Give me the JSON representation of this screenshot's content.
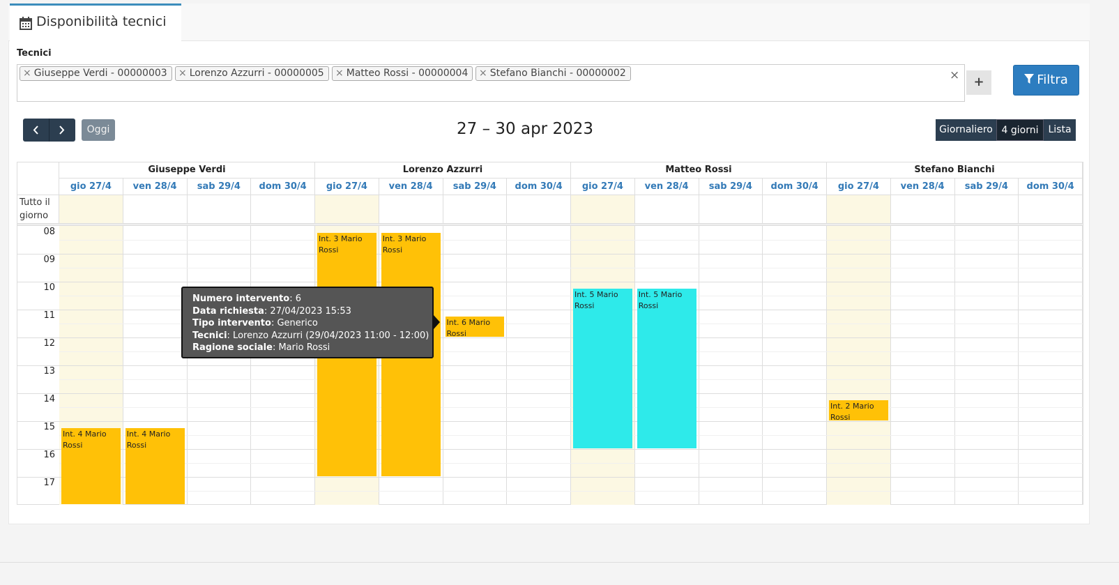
{
  "tab": {
    "title": "Disponibilità tecnici"
  },
  "filter": {
    "label": "Tecnici",
    "remove_icon": "×",
    "tags": [
      "Giuseppe Verdi - 00000003",
      "Lorenzo Azzurri - 00000005",
      "Matteo Rossi - 00000004",
      "Stefano Bianchi - 00000002"
    ],
    "clear": "×",
    "add": "+",
    "button": "Filtra"
  },
  "toolbar": {
    "today": "Oggi",
    "range": "27 – 30 apr 2023",
    "views": [
      "Giornaliero",
      "4 giorni",
      "Lista"
    ],
    "active_view": 1
  },
  "calendar": {
    "resources": [
      "Giuseppe Verdi",
      "Lorenzo Azzurri",
      "Matteo Rossi",
      "Stefano Bianchi"
    ],
    "days": [
      "gio 27/4",
      "ven 28/4",
      "sab 29/4",
      "dom 30/4"
    ],
    "today_day": 0,
    "all_day": "Tutto il giorno",
    "hours": [
      "08",
      "09",
      "10",
      "11",
      "12",
      "13",
      "14",
      "15",
      "16",
      "17"
    ],
    "events": [
      {
        "title": "Int. 4 Mario Rossi",
        "resource": 0,
        "day": 0,
        "start": "15:00",
        "end": "18:00",
        "color": "#ffc107"
      },
      {
        "title": "Int. 4 Mario Rossi",
        "resource": 0,
        "day": 1,
        "start": "15:00",
        "end": "18:00",
        "color": "#ffc107"
      },
      {
        "title": "Int. 3 Mario Rossi",
        "resource": 1,
        "day": 0,
        "start": "08:00",
        "end": "17:00",
        "color": "#ffc107"
      },
      {
        "title": "Int. 3 Mario Rossi",
        "resource": 1,
        "day": 1,
        "start": "08:00",
        "end": "17:00",
        "color": "#ffc107"
      },
      {
        "title": "Int. 6 Mario Rossi",
        "resource": 1,
        "day": 2,
        "start": "11:00",
        "end": "12:00",
        "color": "#ffc107"
      },
      {
        "title": "Int. 5 Mario Rossi",
        "resource": 2,
        "day": 0,
        "start": "10:00",
        "end": "16:00",
        "color": "#2eeaea"
      },
      {
        "title": "Int. 5 Mario Rossi",
        "resource": 2,
        "day": 1,
        "start": "10:00",
        "end": "16:00",
        "color": "#2eeaea"
      },
      {
        "title": "Int. 2 Mario Rossi",
        "resource": 3,
        "day": 0,
        "start": "14:00",
        "end": "15:00",
        "color": "#ffc107"
      }
    ]
  },
  "tooltip": {
    "event": 4,
    "rows": [
      {
        "label": "Numero intervento",
        "value": ": 6"
      },
      {
        "label": "Data richiesta",
        "value": ": 27/04/2023 15:53"
      },
      {
        "label": "Tipo intervento",
        "value": ": Generico"
      },
      {
        "label": "Tecnici",
        "value": ": Lorenzo Azzurri (29/04/2023 11:00 - 12:00)"
      },
      {
        "label": "Ragione sociale",
        "value": ": Mario Rossi"
      }
    ]
  }
}
